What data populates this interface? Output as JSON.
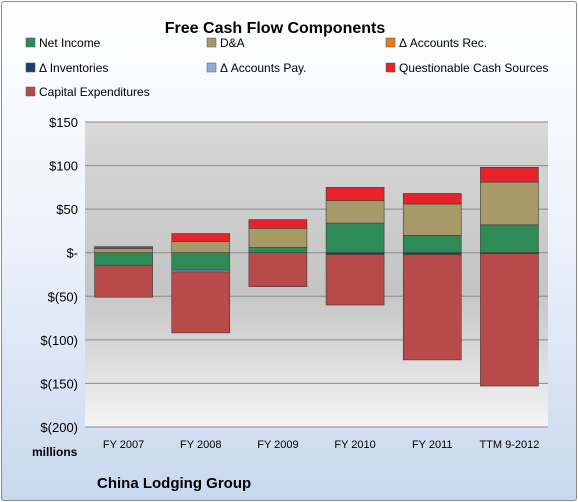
{
  "chart_data": {
    "type": "bar",
    "stacked": true,
    "title": "Free Cash Flow Components",
    "unit_label": "millions",
    "company": "China Lodging Group",
    "ylim": [
      -200,
      150
    ],
    "yticks": [
      150,
      100,
      50,
      0,
      -50,
      -100,
      -150,
      -200
    ],
    "ytick_labels": [
      "$150",
      "$100",
      "$50",
      "$-",
      "$(50)",
      "$(100)",
      "$(150)",
      "$(200)"
    ],
    "grid": true,
    "legend_position": "top",
    "categories": [
      "FY 2007",
      "FY 2008",
      "FY 2009",
      "FY 2010",
      "FY 2011",
      "TTM 9-2012"
    ],
    "series": [
      {
        "name": "Net Income",
        "color": "#2e8b57",
        "values": [
          -15,
          -20,
          6,
          34,
          20,
          32
        ]
      },
      {
        "name": "D&A",
        "color": "#a89968",
        "values": [
          5,
          13,
          22,
          26,
          36,
          49
        ]
      },
      {
        "name": "Δ Accounts Rec.",
        "color": "#e07b1f",
        "values": [
          0,
          0,
          0,
          0,
          0,
          0
        ]
      },
      {
        "name": "Δ Inventories",
        "color": "#1f3f6b",
        "values": [
          0,
          0,
          0,
          -2,
          -2,
          -1
        ]
      },
      {
        "name": "Δ Accounts Pay.",
        "color": "#8faad6",
        "values": [
          0,
          -2,
          0,
          0,
          0,
          0
        ]
      },
      {
        "name": "Questionable Cash Sources",
        "color": "#e8222a",
        "values": [
          2,
          9,
          10,
          15,
          12,
          17
        ]
      },
      {
        "name": "Capital Expenditures",
        "color": "#b84a4a",
        "values": [
          -36,
          -70,
          -39,
          -58,
          -121,
          -152
        ]
      }
    ]
  }
}
